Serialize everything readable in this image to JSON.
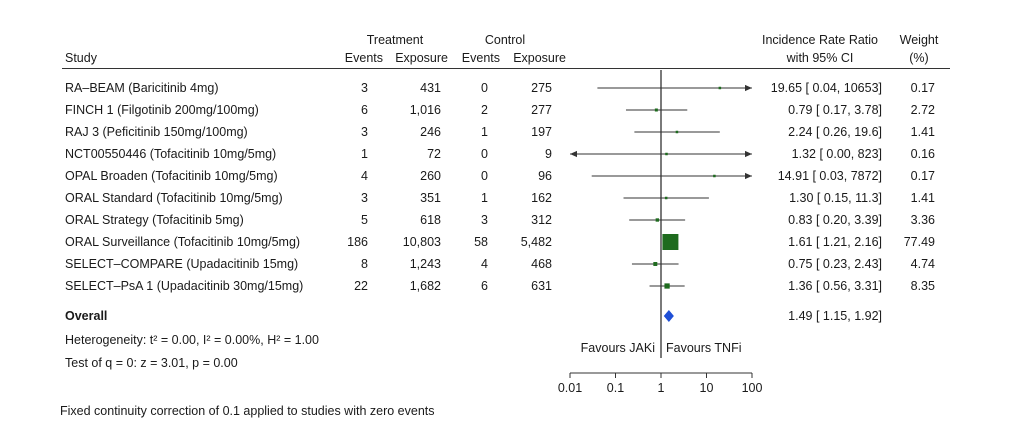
{
  "headers": {
    "study": "Study",
    "treatment": "Treatment",
    "control": "Control",
    "events": "Events",
    "exposure": "Exposure",
    "irr_line1": "Incidence Rate Ratio",
    "irr_line2": "with 95% CI",
    "weight_line1": "Weight",
    "weight_line2": "(%)"
  },
  "chart_data": {
    "type": "forest",
    "x_scale": "log",
    "xlim": [
      0.01,
      100
    ],
    "ticks": [
      "0.01",
      "0.1",
      "1",
      "10",
      "100"
    ],
    "tick_values": [
      0.01,
      0.1,
      1,
      10,
      100
    ],
    "reference_line": 1,
    "rows": [
      {
        "study": "RA–BEAM (Baricitinib 4mg)",
        "t_events": "3",
        "t_exposure": "431",
        "c_events": "0",
        "c_exposure": "275",
        "irr": 19.65,
        "lo": 0.04,
        "hi": 10653,
        "ci_text": "19.65 [ 0.04,  10653]",
        "weight": 0.17,
        "weight_text": "0.17"
      },
      {
        "study": "FINCH 1 (Filgotinib 200mg/100mg)",
        "t_events": "6",
        "t_exposure": "1,016",
        "c_events": "2",
        "c_exposure": "277",
        "irr": 0.79,
        "lo": 0.17,
        "hi": 3.78,
        "ci_text": "0.79 [ 0.17,    3.78]",
        "weight": 2.72,
        "weight_text": "2.72"
      },
      {
        "study": "RAJ 3 (Peficitinib 150mg/100mg)",
        "t_events": "3",
        "t_exposure": "246",
        "c_events": "1",
        "c_exposure": "197",
        "irr": 2.24,
        "lo": 0.26,
        "hi": 19.6,
        "ci_text": "2.24 [ 0.26,    19.6]",
        "weight": 1.41,
        "weight_text": "1.41"
      },
      {
        "study": "NCT00550446 (Tofacitinib 10mg/5mg)",
        "t_events": "1",
        "t_exposure": "72",
        "c_events": "0",
        "c_exposure": "9",
        "irr": 1.32,
        "lo": 0.0,
        "hi": 823,
        "ci_text": "1.32 [ 0.00,     823]",
        "weight": 0.16,
        "weight_text": "0.16"
      },
      {
        "study": "OPAL Broaden (Tofacitinib 10mg/5mg)",
        "t_events": "4",
        "t_exposure": "260",
        "c_events": "0",
        "c_exposure": "96",
        "irr": 14.91,
        "lo": 0.03,
        "hi": 7872,
        "ci_text": "14.91 [ 0.03,   7872]",
        "weight": 0.17,
        "weight_text": "0.17"
      },
      {
        "study": "ORAL Standard (Tofacitinib 10mg/5mg)",
        "t_events": "3",
        "t_exposure": "351",
        "c_events": "1",
        "c_exposure": "162",
        "irr": 1.3,
        "lo": 0.15,
        "hi": 11.3,
        "ci_text": "1.30 [ 0.15,    11.3]",
        "weight": 1.41,
        "weight_text": "1.41"
      },
      {
        "study": "ORAL Strategy (Tofacitinib 5mg)",
        "t_events": "5",
        "t_exposure": "618",
        "c_events": "3",
        "c_exposure": "312",
        "irr": 0.83,
        "lo": 0.2,
        "hi": 3.39,
        "ci_text": "0.83 [ 0.20,    3.39]",
        "weight": 3.36,
        "weight_text": "3.36"
      },
      {
        "study": "ORAL Surveillance (Tofacitinib 10mg/5mg)",
        "t_events": "186",
        "t_exposure": "10,803",
        "c_events": "58",
        "c_exposure": "5,482",
        "irr": 1.61,
        "lo": 1.21,
        "hi": 2.16,
        "ci_text": "1.61 [ 1.21,    2.16]",
        "weight": 77.49,
        "weight_text": "77.49"
      },
      {
        "study": "SELECT–COMPARE (Upadacitinib 15mg)",
        "t_events": "8",
        "t_exposure": "1,243",
        "c_events": "4",
        "c_exposure": "468",
        "irr": 0.75,
        "lo": 0.23,
        "hi": 2.43,
        "ci_text": "0.75 [ 0.23,    2.43]",
        "weight": 4.74,
        "weight_text": "4.74"
      },
      {
        "study": "SELECT–PsA 1 (Upadacitinib 30mg/15mg)",
        "t_events": "22",
        "t_exposure": "1,682",
        "c_events": "6",
        "c_exposure": "631",
        "irr": 1.36,
        "lo": 0.56,
        "hi": 3.31,
        "ci_text": "1.36 [ 0.56,    3.31]",
        "weight": 8.35,
        "weight_text": "8.35"
      }
    ],
    "overall": {
      "label": "Overall",
      "irr": 1.49,
      "lo": 1.15,
      "hi": 1.92,
      "ci_text": "1.49 [ 1.15,    1.92]"
    },
    "favours_left": "Favours JAKi",
    "favours_right": "Favours TNFi",
    "colors": {
      "box": "#1e6b1e",
      "diamond": "#1f4fd6",
      "line": "#333333"
    }
  },
  "heterogeneity": "Heterogeneity: t² = 0.00, I² = 0.00%, H² = 1.00",
  "test": "Test of q = 0: z = 3.01, p = 0.00",
  "footnote": "Fixed continuity correction of 0.1 applied to studies with zero events"
}
